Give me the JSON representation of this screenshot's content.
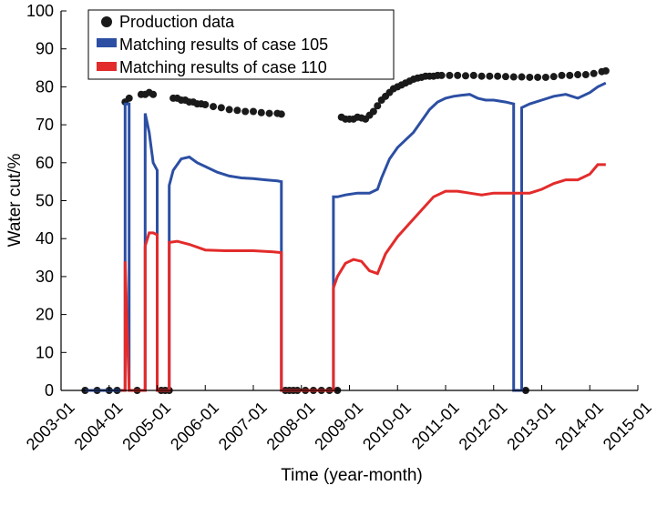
{
  "chart_data": {
    "type": "line",
    "xlabel": "Time (year-month)",
    "ylabel": "Water cut/%",
    "xlim": [
      "2003-01",
      "2015-01"
    ],
    "ylim": [
      0,
      100
    ],
    "x_ticks": [
      "2003-01",
      "2004-01",
      "2005-01",
      "2006-01",
      "2007-01",
      "2008-01",
      "2009-01",
      "2010-01",
      "2011-01",
      "2012-01",
      "2013-01",
      "2014-01",
      "2015-01"
    ],
    "y_ticks": [
      0,
      10,
      20,
      30,
      40,
      50,
      60,
      70,
      80,
      90,
      100
    ],
    "legend": "top-left",
    "series": [
      {
        "name": "Production data",
        "style": "scatter",
        "color": "#1a1a1a",
        "x": [
          "2003-07",
          "2003-10",
          "2004-01",
          "2004-03",
          "2004-05",
          "2004-06",
          "2004-08",
          "2004-09",
          "2004-10",
          "2004-11",
          "2004-12",
          "2005-02",
          "2005-03",
          "2005-04",
          "2005-05",
          "2005-06",
          "2005-07",
          "2005-08",
          "2005-09",
          "2005-10",
          "2005-11",
          "2005-12",
          "2006-01",
          "2006-03",
          "2006-05",
          "2006-07",
          "2006-09",
          "2006-11",
          "2007-01",
          "2007-03",
          "2007-05",
          "2007-07",
          "2007-08",
          "2007-09",
          "2007-10",
          "2007-11",
          "2007-12",
          "2008-02",
          "2008-04",
          "2008-06",
          "2008-08",
          "2008-10",
          "2008-11",
          "2008-12",
          "2009-01",
          "2009-02",
          "2009-03",
          "2009-04",
          "2009-05",
          "2009-06",
          "2009-07",
          "2009-08",
          "2009-09",
          "2009-10",
          "2009-11",
          "2009-12",
          "2010-01",
          "2010-02",
          "2010-03",
          "2010-04",
          "2010-05",
          "2010-06",
          "2010-07",
          "2010-08",
          "2010-09",
          "2010-10",
          "2010-11",
          "2010-12",
          "2011-02",
          "2011-04",
          "2011-06",
          "2011-08",
          "2011-10",
          "2011-12",
          "2012-02",
          "2012-04",
          "2012-06",
          "2012-08",
          "2012-09",
          "2012-10",
          "2012-12",
          "2013-02",
          "2013-04",
          "2013-06",
          "2013-08",
          "2013-10",
          "2013-12",
          "2014-02",
          "2014-04",
          "2014-05"
        ],
        "values": [
          0,
          0,
          0,
          0,
          76,
          77,
          0,
          78,
          78,
          78.5,
          78,
          0,
          0,
          0,
          77,
          77,
          76.5,
          76.5,
          76,
          76,
          75.5,
          75.5,
          75.3,
          74.8,
          74.5,
          74,
          73.8,
          73.5,
          73.5,
          73.2,
          73,
          73,
          72.8,
          0,
          0,
          0,
          0,
          0,
          0,
          0,
          0,
          0,
          72,
          71.5,
          71.5,
          71.5,
          72,
          71.8,
          71.5,
          72.5,
          73.5,
          75,
          76.5,
          77.5,
          78.5,
          79.5,
          80,
          80.5,
          81,
          81.5,
          82,
          82.3,
          82.5,
          82.8,
          82.8,
          82.8,
          83,
          83,
          83,
          83,
          82.9,
          83,
          82.8,
          82.8,
          82.8,
          82.7,
          82.6,
          82.6,
          0,
          82.5,
          82.5,
          82.5,
          82.7,
          83,
          83,
          83.2,
          83.2,
          83.5,
          84,
          84.2
        ]
      },
      {
        "name": "Matching results of case 105",
        "style": "line",
        "color": "#2c4fa3",
        "x": [
          "2003-07",
          "2004-04",
          "2004-05",
          "2004-05",
          "2004-06",
          "2004-06",
          "2004-10",
          "2004-10",
          "2004-11",
          "2004-12",
          "2005-01",
          "2005-01",
          "2005-04",
          "2005-04",
          "2005-05",
          "2005-07",
          "2005-09",
          "2005-11",
          "2006-01",
          "2006-04",
          "2006-07",
          "2006-10",
          "2007-01",
          "2007-04",
          "2007-07",
          "2007-08",
          "2007-08",
          "2008-09",
          "2008-09",
          "2008-10",
          "2008-12",
          "2009-03",
          "2009-06",
          "2009-08",
          "2009-09",
          "2009-11",
          "2010-01",
          "2010-03",
          "2010-05",
          "2010-07",
          "2010-09",
          "2010-11",
          "2011-01",
          "2011-03",
          "2011-05",
          "2011-07",
          "2011-09",
          "2011-11",
          "2012-01",
          "2012-04",
          "2012-06",
          "2012-06",
          "2012-08",
          "2012-08",
          "2012-10",
          "2013-01",
          "2013-04",
          "2013-07",
          "2013-10",
          "2014-01",
          "2014-03",
          "2014-05"
        ],
        "values": [
          0,
          0,
          0,
          75.5,
          75.5,
          0,
          0,
          73,
          68,
          60,
          58,
          0,
          0,
          54,
          58,
          61,
          61.5,
          60,
          59,
          57.5,
          56.5,
          56,
          55.8,
          55.5,
          55.2,
          55,
          0,
          0,
          51,
          51,
          51.5,
          52,
          52,
          53,
          56,
          61,
          64,
          66,
          68,
          71,
          74,
          76,
          77,
          77.5,
          77.8,
          78,
          77,
          76.5,
          76.5,
          76,
          75.5,
          0,
          0,
          74.5,
          75.5,
          76.5,
          77.5,
          78,
          77,
          78.5,
          80,
          81
        ]
      },
      {
        "name": "Matching results of case 110",
        "style": "line",
        "color": "#e32b2b",
        "x": [
          "2004-04",
          "2004-05",
          "2004-05",
          "2004-06",
          "2004-10",
          "2004-10",
          "2004-11",
          "2004-12",
          "2005-01",
          "2005-01",
          "2005-04",
          "2005-04",
          "2005-06",
          "2005-09",
          "2006-01",
          "2006-06",
          "2007-01",
          "2007-06",
          "2007-08",
          "2007-08",
          "2008-09",
          "2008-09",
          "2008-10",
          "2008-12",
          "2009-02",
          "2009-04",
          "2009-06",
          "2009-08",
          "2009-10",
          "2010-01",
          "2010-04",
          "2010-07",
          "2010-10",
          "2011-01",
          "2011-04",
          "2011-07",
          "2011-10",
          "2012-01",
          "2012-04",
          "2012-07",
          "2012-10",
          "2013-01",
          "2013-04",
          "2013-07",
          "2013-10",
          "2014-01",
          "2014-03",
          "2014-05"
        ],
        "values": [
          0,
          0,
          34,
          0,
          0,
          38,
          41.5,
          41.5,
          41,
          0,
          0,
          39,
          39.3,
          38.5,
          37,
          36.8,
          36.8,
          36.5,
          36.3,
          0,
          0,
          27,
          30,
          33.5,
          34.5,
          34,
          31.5,
          30.8,
          36,
          40.5,
          44,
          47.5,
          51,
          52.5,
          52.5,
          52,
          51.5,
          52,
          52,
          52,
          52,
          53,
          54.5,
          55.5,
          55.5,
          57,
          59.5,
          59.5
        ]
      }
    ]
  }
}
